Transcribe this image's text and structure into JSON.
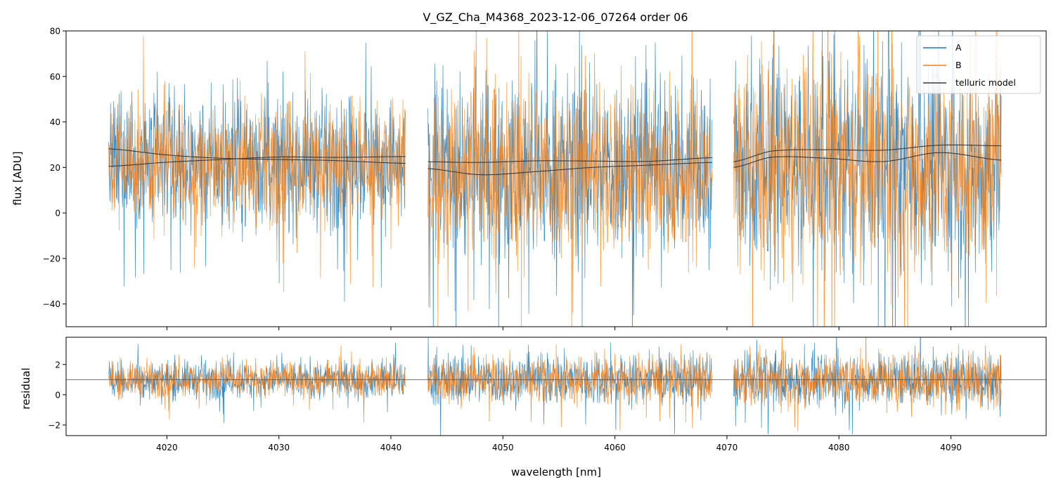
{
  "chart_data": {
    "type": "line",
    "title": "V_GZ_Cha_M4368_2023-12-06_07264  order 06",
    "xlabel": "wavelength [nm]",
    "xlim": [
      4011,
      4098.5
    ],
    "xticks": [
      "4020",
      "4030",
      "4040",
      "4050",
      "4060",
      "4070",
      "4080",
      "4090"
    ],
    "segments": [
      [
        4014.8,
        4041.3
      ],
      [
        4043.3,
        4068.7
      ],
      [
        4070.6,
        4094.5
      ]
    ],
    "legend": {
      "placement": "top-right",
      "entries": [
        "A",
        "B",
        "telluric model"
      ]
    },
    "colors": {
      "A": "#1f77b4",
      "B": "#ff7f0e",
      "telluric": "#3a3a3a"
    },
    "panels": [
      {
        "name": "flux",
        "ylabel": "flux [ADU]",
        "ylim": [
          -50,
          80
        ],
        "yticks": [
          "80",
          "60",
          "40",
          "20",
          "0",
          "−20",
          "−40"
        ],
        "series": [
          {
            "name": "A",
            "kind": "noisy-spectrum",
            "center_by_segment": [
              22,
              20,
              22
            ],
            "spread_by_segment": [
              14,
              20,
              24
            ]
          },
          {
            "name": "B",
            "kind": "noisy-spectrum",
            "center_by_segment": [
              22,
              18,
              20
            ],
            "spread_by_segment": [
              13,
              19,
              23
            ]
          },
          {
            "name": "telluric model",
            "kind": "model",
            "curves": [
              {
                "segment": 0,
                "x": [
                  4014.8,
                  4020,
                  4025,
                  4030,
                  4035,
                  4041.3
                ],
                "y": [
                  28.2,
                  25.5,
                  24,
                  23.5,
                  23,
                  21.8
                ]
              },
              {
                "segment": 0,
                "x": [
                  4014.8,
                  4020,
                  4025,
                  4030,
                  4035,
                  4041.3
                ],
                "y": [
                  20.5,
                  22.3,
                  23.5,
                  24.6,
                  24.4,
                  24.8
                ]
              },
              {
                "segment": 1,
                "x": [
                  4043.3,
                  4048,
                  4053,
                  4058,
                  4063,
                  4068.7
                ],
                "y": [
                  22.5,
                  22.2,
                  22.9,
                  22.8,
                  22.7,
                  24.3
                ]
              },
              {
                "segment": 1,
                "x": [
                  4043.3,
                  4048,
                  4053,
                  4058,
                  4063,
                  4068.7
                ],
                "y": [
                  19.5,
                  16.8,
                  18.2,
                  20,
                  21,
                  22.2
                ]
              },
              {
                "segment": 2,
                "x": [
                  4070.6,
                  4074,
                  4079,
                  4084,
                  4089,
                  4094.5
                ],
                "y": [
                  22.5,
                  27.2,
                  27.8,
                  27.6,
                  29.8,
                  29.5
                ]
              },
              {
                "segment": 2,
                "x": [
                  4070.6,
                  4074,
                  4079,
                  4084,
                  4089,
                  4094.5
                ],
                "y": [
                  20,
                  24.5,
                  24,
                  22.6,
                  26.5,
                  23.2
                ]
              }
            ]
          }
        ]
      },
      {
        "name": "residual",
        "ylabel": "residual",
        "ylim": [
          -2.7,
          3.8
        ],
        "yticks": [
          "2",
          "0",
          "−2"
        ],
        "reference_line": 1,
        "series": [
          {
            "name": "A",
            "kind": "noisy-residual",
            "center": 1,
            "spread_by_segment": [
              0.6,
              0.85,
              0.9
            ]
          },
          {
            "name": "B",
            "kind": "noisy-residual",
            "center": 1,
            "spread_by_segment": [
              0.55,
              0.8,
              0.85
            ]
          }
        ]
      }
    ]
  }
}
